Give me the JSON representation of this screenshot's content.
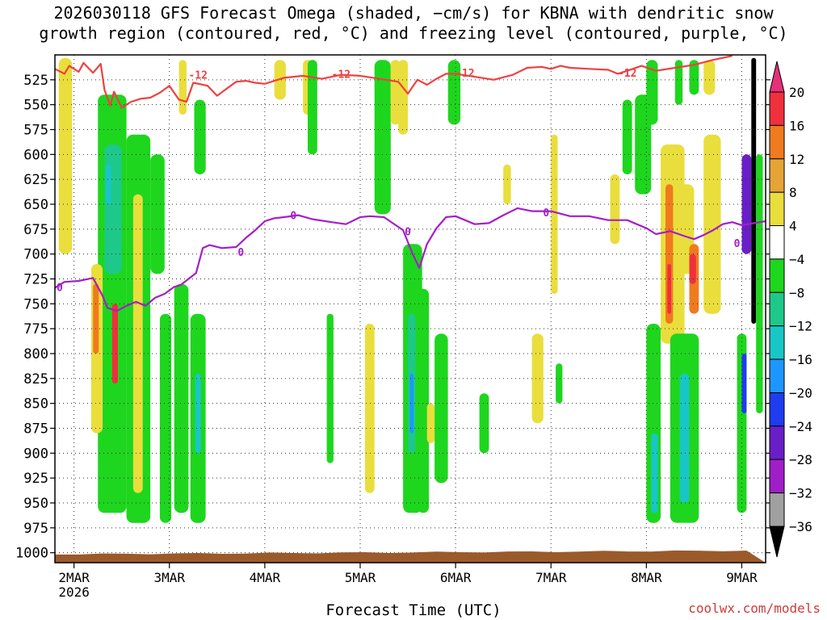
{
  "title_line1": "2026030118 GFS Forecast Omega (shaded, −cm/s) for KBNA with dendritic snow",
  "title_line2": "growth region (contoured, red, °C) and freezing level (contoured, purple, °C)",
  "credit": "coolwx.com/models",
  "chart_data": {
    "type": "heatmap",
    "title": "2026030118 GFS Forecast Omega (shaded, −cm/s) for KBNA with dendritic snow growth region (contoured, red, °C) and freezing level (contoured, purple, °C)",
    "xlabel": "Forecast Time (UTC)",
    "ylabel": "",
    "x_range_days": [
      1.8,
      9.25
    ],
    "y_range_hPa": [
      500,
      1010
    ],
    "y_ticks": [
      525,
      550,
      575,
      600,
      625,
      650,
      675,
      700,
      725,
      750,
      775,
      800,
      825,
      850,
      875,
      900,
      925,
      950,
      975,
      1000
    ],
    "y_tick_labels": [
      "525",
      "550",
      "575",
      "600",
      "625",
      "650",
      "675",
      "700",
      "725",
      "750",
      "775",
      "800",
      "825",
      "850",
      "875",
      "900",
      "925",
      "950",
      "975",
      "1000"
    ],
    "x_ticks": [
      {
        "day": 2,
        "label": "2MAR"
      },
      {
        "day": 3,
        "label": "3MAR"
      },
      {
        "day": 4,
        "label": "4MAR"
      },
      {
        "day": 5,
        "label": "5MAR"
      },
      {
        "day": 6,
        "label": "6MAR"
      },
      {
        "day": 7,
        "label": "7MAR"
      },
      {
        "day": 8,
        "label": "8MAR"
      },
      {
        "day": 9,
        "label": "9MAR"
      }
    ],
    "x_year_label": "2026",
    "colorbar": {
      "labels": [
        "20",
        "16",
        "12",
        "8",
        "4",
        "−4",
        "−8",
        "−12",
        "−16",
        "−20",
        "−24",
        "−28",
        "−32",
        "−36"
      ],
      "bins": [
        {
          "from": 16,
          "to": 20,
          "color": "#f0303c"
        },
        {
          "from": 12,
          "to": 16,
          "color": "#f07a1e"
        },
        {
          "from": 8,
          "to": 12,
          "color": "#e6a436"
        },
        {
          "from": 4,
          "to": 8,
          "color": "#e9de3c"
        },
        {
          "from": -4,
          "to": 4,
          "color": "#ffffff"
        },
        {
          "from": -8,
          "to": -4,
          "color": "#1ed61e"
        },
        {
          "from": -12,
          "to": -8,
          "color": "#1ec88a"
        },
        {
          "from": -16,
          "to": -12,
          "color": "#19c6c6"
        },
        {
          "from": -20,
          "to": -16,
          "color": "#1e96ff"
        },
        {
          "from": -24,
          "to": -20,
          "color": "#1e3cf0"
        },
        {
          "from": -28,
          "to": -24,
          "color": "#6a1ec8"
        },
        {
          "from": -32,
          "to": -28,
          "color": "#a01ec8"
        },
        {
          "from": -36,
          "to": -32,
          "color": "#a0a0a0"
        }
      ],
      "over_color": "#e6307a",
      "under_color": "#000000"
    },
    "series": [
      {
        "name": "-12 °C isotherm (dendritic growth region)",
        "color": "#f04040",
        "label": "-12",
        "points": [
          [
            1.8,
            514
          ],
          [
            1.9,
            519
          ],
          [
            1.95,
            511
          ],
          [
            2.05,
            517
          ],
          [
            2.1,
            508
          ],
          [
            2.2,
            518
          ],
          [
            2.28,
            509
          ],
          [
            2.32,
            535
          ],
          [
            2.38,
            551
          ],
          [
            2.42,
            537
          ],
          [
            2.5,
            553
          ],
          [
            2.6,
            547
          ],
          [
            2.7,
            544
          ],
          [
            2.8,
            543
          ],
          [
            2.9,
            538
          ],
          [
            3.0,
            531
          ],
          [
            3.1,
            545
          ],
          [
            3.18,
            547
          ],
          [
            3.25,
            528
          ],
          [
            3.4,
            531
          ],
          [
            3.5,
            541
          ],
          [
            3.6,
            534
          ],
          [
            3.7,
            527
          ],
          [
            3.8,
            526
          ],
          [
            3.9,
            528
          ],
          [
            4.0,
            529
          ],
          [
            4.2,
            523
          ],
          [
            4.4,
            521
          ],
          [
            4.6,
            524
          ],
          [
            4.8,
            520
          ],
          [
            5.0,
            521
          ],
          [
            5.2,
            524
          ],
          [
            5.4,
            527
          ],
          [
            5.5,
            539
          ],
          [
            5.6,
            525
          ],
          [
            5.7,
            530
          ],
          [
            5.8,
            524
          ],
          [
            5.9,
            519
          ],
          [
            6.0,
            519
          ],
          [
            6.2,
            522
          ],
          [
            6.4,
            525
          ],
          [
            6.6,
            520
          ],
          [
            6.75,
            513
          ],
          [
            6.9,
            512
          ],
          [
            7.0,
            514
          ],
          [
            7.1,
            511
          ],
          [
            7.2,
            513
          ],
          [
            7.4,
            514
          ],
          [
            7.6,
            515
          ],
          [
            7.7,
            519
          ],
          [
            7.8,
            516
          ],
          [
            7.95,
            511
          ],
          [
            8.1,
            516
          ],
          [
            8.3,
            513
          ],
          [
            8.5,
            510
          ],
          [
            8.7,
            505
          ],
          [
            8.9,
            501
          ]
        ],
        "labels_at": [
          [
            3.3,
            520
          ],
          [
            4.8,
            519
          ],
          [
            6.1,
            518
          ],
          [
            7.8,
            518
          ]
        ]
      },
      {
        "name": "0 °C isotherm (freezing level)",
        "color": "#a51ec8",
        "label": "0",
        "points": [
          [
            1.8,
            734
          ],
          [
            1.9,
            728
          ],
          [
            2.05,
            727
          ],
          [
            2.2,
            724
          ],
          [
            2.3,
            742
          ],
          [
            2.35,
            754
          ],
          [
            2.45,
            757
          ],
          [
            2.55,
            752
          ],
          [
            2.65,
            748
          ],
          [
            2.75,
            752
          ],
          [
            2.85,
            744
          ],
          [
            2.95,
            740
          ],
          [
            3.05,
            733
          ],
          [
            3.12,
            731
          ],
          [
            3.2,
            725
          ],
          [
            3.28,
            719
          ],
          [
            3.35,
            694
          ],
          [
            3.42,
            691
          ],
          [
            3.55,
            694
          ],
          [
            3.7,
            693
          ],
          [
            3.8,
            684
          ],
          [
            3.9,
            676
          ],
          [
            4.0,
            667
          ],
          [
            4.1,
            664
          ],
          [
            4.2,
            663
          ],
          [
            4.35,
            661
          ],
          [
            4.5,
            665
          ],
          [
            4.7,
            668
          ],
          [
            4.85,
            670
          ],
          [
            5.0,
            663
          ],
          [
            5.1,
            662
          ],
          [
            5.25,
            663
          ],
          [
            5.45,
            676
          ],
          [
            5.55,
            700
          ],
          [
            5.62,
            714
          ],
          [
            5.7,
            690
          ],
          [
            5.8,
            674
          ],
          [
            5.9,
            663
          ],
          [
            6.0,
            662
          ],
          [
            6.1,
            666
          ],
          [
            6.2,
            670
          ],
          [
            6.35,
            669
          ],
          [
            6.5,
            661
          ],
          [
            6.65,
            654
          ],
          [
            6.8,
            657
          ],
          [
            7.0,
            657
          ],
          [
            7.2,
            662
          ],
          [
            7.4,
            662
          ],
          [
            7.6,
            666
          ],
          [
            7.8,
            666
          ],
          [
            7.9,
            670
          ],
          [
            8.0,
            674
          ],
          [
            8.1,
            680
          ],
          [
            8.25,
            677
          ],
          [
            8.4,
            682
          ],
          [
            8.5,
            685
          ],
          [
            8.6,
            681
          ],
          [
            8.7,
            676
          ],
          [
            8.8,
            670
          ],
          [
            8.9,
            668
          ],
          [
            9.0,
            671
          ],
          [
            9.25,
            667
          ]
        ],
        "labels_at": [
          [
            1.85,
            733
          ],
          [
            3.75,
            698
          ],
          [
            4.3,
            661
          ],
          [
            5.5,
            677
          ],
          [
            6.95,
            658
          ],
          [
            8.95,
            689
          ]
        ]
      }
    ],
    "regions": [
      {
        "x": [
          1.84,
          1.98
        ],
        "p": [
          503,
          700
        ],
        "value": 5
      },
      {
        "x": [
          2.25,
          2.55
        ],
        "p": [
          540,
          960
        ],
        "value": -7
      },
      {
        "x": [
          2.32,
          2.5
        ],
        "p": [
          590,
          720
        ],
        "value": -10
      },
      {
        "x": [
          2.33,
          2.39
        ],
        "p": [
          610,
          650
        ],
        "value": -14
      },
      {
        "x": [
          2.18,
          2.3
        ],
        "p": [
          710,
          880
        ],
        "value": 6
      },
      {
        "x": [
          2.2,
          2.26
        ],
        "p": [
          730,
          800
        ],
        "value": 13
      },
      {
        "x": [
          2.4,
          2.46
        ],
        "p": [
          750,
          830
        ],
        "value": 17
      },
      {
        "x": [
          2.55,
          2.8
        ],
        "p": [
          580,
          970
        ],
        "value": -7
      },
      {
        "x": [
          2.62,
          2.72
        ],
        "p": [
          640,
          940
        ],
        "value": 6
      },
      {
        "x": [
          2.8,
          2.95
        ],
        "p": [
          600,
          720
        ],
        "value": -6
      },
      {
        "x": [
          2.9,
          3.02
        ],
        "p": [
          760,
          970
        ],
        "value": -7
      },
      {
        "x": [
          3.05,
          3.2
        ],
        "p": [
          730,
          960
        ],
        "value": -7
      },
      {
        "x": [
          3.22,
          3.38
        ],
        "p": [
          760,
          970
        ],
        "value": -8
      },
      {
        "x": [
          3.27,
          3.33
        ],
        "p": [
          820,
          900
        ],
        "value": -13
      },
      {
        "x": [
          3.1,
          3.18
        ],
        "p": [
          505,
          560
        ],
        "value": 5
      },
      {
        "x": [
          3.26,
          3.38
        ],
        "p": [
          545,
          620
        ],
        "value": -6
      },
      {
        "x": [
          4.1,
          4.22
        ],
        "p": [
          505,
          545
        ],
        "value": 5
      },
      {
        "x": [
          4.4,
          4.5
        ],
        "p": [
          505,
          560
        ],
        "value": 5
      },
      {
        "x": [
          4.45,
          4.55
        ],
        "p": [
          505,
          600
        ],
        "value": -6
      },
      {
        "x": [
          4.65,
          4.72
        ],
        "p": [
          760,
          910
        ],
        "value": -6
      },
      {
        "x": [
          5.05,
          5.15
        ],
        "p": [
          770,
          940
        ],
        "value": 5
      },
      {
        "x": [
          5.15,
          5.32
        ],
        "p": [
          505,
          660
        ],
        "value": -7
      },
      {
        "x": [
          5.32,
          5.42
        ],
        "p": [
          505,
          570
        ],
        "value": 5
      },
      {
        "x": [
          5.4,
          5.5
        ],
        "p": [
          505,
          580
        ],
        "value": 5
      },
      {
        "x": [
          5.45,
          5.65
        ],
        "p": [
          690,
          960
        ],
        "value": -7
      },
      {
        "x": [
          5.5,
          5.58
        ],
        "p": [
          760,
          900
        ],
        "value": -12
      },
      {
        "x": [
          5.52,
          5.56
        ],
        "p": [
          820,
          880
        ],
        "value": -20
      },
      {
        "x": [
          5.6,
          5.72
        ],
        "p": [
          735,
          960
        ],
        "value": -7
      },
      {
        "x": [
          5.7,
          5.78
        ],
        "p": [
          850,
          890
        ],
        "value": 5
      },
      {
        "x": [
          5.78,
          5.92
        ],
        "p": [
          780,
          930
        ],
        "value": -7
      },
      {
        "x": [
          5.92,
          6.05
        ],
        "p": [
          505,
          570
        ],
        "value": -6
      },
      {
        "x": [
          6.25,
          6.35
        ],
        "p": [
          840,
          900
        ],
        "value": -6
      },
      {
        "x": [
          6.5,
          6.58
        ],
        "p": [
          610,
          650
        ],
        "value": 5
      },
      {
        "x": [
          6.8,
          6.92
        ],
        "p": [
          780,
          870
        ],
        "value": 5
      },
      {
        "x": [
          7.0,
          7.07
        ],
        "p": [
          580,
          740
        ],
        "value": 5
      },
      {
        "x": [
          7.05,
          7.12
        ],
        "p": [
          810,
          850
        ],
        "value": -6
      },
      {
        "x": [
          7.62,
          7.72
        ],
        "p": [
          620,
          690
        ],
        "value": 5
      },
      {
        "x": [
          7.75,
          7.85
        ],
        "p": [
          545,
          620
        ],
        "value": -6
      },
      {
        "x": [
          7.88,
          8.05
        ],
        "p": [
          540,
          640
        ],
        "value": -6
      },
      {
        "x": [
          8.0,
          8.12
        ],
        "p": [
          505,
          570
        ],
        "value": -7
      },
      {
        "x": [
          8.0,
          8.15
        ],
        "p": [
          770,
          970
        ],
        "value": -7
      },
      {
        "x": [
          8.05,
          8.12
        ],
        "p": [
          880,
          960
        ],
        "value": -14
      },
      {
        "x": [
          8.15,
          8.4
        ],
        "p": [
          590,
          790
        ],
        "value": 6
      },
      {
        "x": [
          8.2,
          8.28
        ],
        "p": [
          630,
          770
        ],
        "value": 13
      },
      {
        "x": [
          8.22,
          8.26
        ],
        "p": [
          710,
          760
        ],
        "value": 18
      },
      {
        "x": [
          8.3,
          8.5
        ],
        "p": [
          630,
          720
        ],
        "value": 5
      },
      {
        "x": [
          8.45,
          8.55
        ],
        "p": [
          690,
          760
        ],
        "value": 13
      },
      {
        "x": [
          8.45,
          8.52
        ],
        "p": [
          700,
          730
        ],
        "value": 18
      },
      {
        "x": [
          8.6,
          8.78
        ],
        "p": [
          580,
          760
        ],
        "value": 5
      },
      {
        "x": [
          8.25,
          8.55
        ],
        "p": [
          780,
          970
        ],
        "value": -7
      },
      {
        "x": [
          8.35,
          8.45
        ],
        "p": [
          820,
          950
        ],
        "value": -14
      },
      {
        "x": [
          8.3,
          8.38
        ],
        "p": [
          505,
          550
        ],
        "value": -6
      },
      {
        "x": [
          8.45,
          8.55
        ],
        "p": [
          505,
          540
        ],
        "value": -6
      },
      {
        "x": [
          8.6,
          8.72
        ],
        "p": [
          505,
          540
        ],
        "value": 5
      },
      {
        "x": [
          8.95,
          9.05
        ],
        "p": [
          780,
          960
        ],
        "value": -7
      },
      {
        "x": [
          9.0,
          9.1
        ],
        "p": [
          600,
          700
        ],
        "value": -26
      },
      {
        "x": [
          9.0,
          9.05
        ],
        "p": [
          800,
          860
        ],
        "value": -22
      },
      {
        "x": [
          9.1,
          9.15
        ],
        "p": [
          503,
          770
        ],
        "value": -40
      },
      {
        "x": [
          9.15,
          9.22
        ],
        "p": [
          600,
          860
        ],
        "value": -7
      }
    ],
    "terrain_color": "#9b5a2a"
  }
}
